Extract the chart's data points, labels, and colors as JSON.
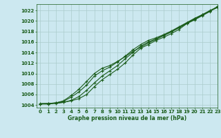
{
  "title": "Graphe pression niveau de la mer (hPa)",
  "background_color": "#cce8f0",
  "grid_color": "#aacccc",
  "line_color": "#1a5c1a",
  "xlim": [
    -0.5,
    23
  ],
  "ylim": [
    1003.5,
    1023.2
  ],
  "yticks": [
    1004,
    1006,
    1008,
    1010,
    1012,
    1014,
    1016,
    1018,
    1020,
    1022
  ],
  "xticks": [
    0,
    1,
    2,
    3,
    4,
    5,
    6,
    7,
    8,
    9,
    10,
    11,
    12,
    13,
    14,
    15,
    16,
    17,
    18,
    19,
    20,
    21,
    22,
    23
  ],
  "series": [
    [
      1004.2,
      1004.3,
      1004.4,
      1004.5,
      1004.8,
      1005.2,
      1006.0,
      1007.5,
      1008.8,
      1009.8,
      1010.8,
      1012.0,
      1013.5,
      1014.8,
      1015.5,
      1016.3,
      1016.9,
      1017.6,
      1018.4,
      1019.5,
      1020.2,
      1021.0,
      1021.8,
      1022.8
    ],
    [
      1004.2,
      1004.2,
      1004.3,
      1004.5,
      1004.9,
      1005.6,
      1006.8,
      1008.2,
      1009.5,
      1010.5,
      1011.5,
      1012.8,
      1014.0,
      1015.2,
      1016.0,
      1016.6,
      1017.3,
      1018.0,
      1018.8,
      1019.6,
      1020.4,
      1021.2,
      1021.9,
      1022.6
    ],
    [
      1004.3,
      1004.3,
      1004.4,
      1004.7,
      1005.5,
      1006.5,
      1007.8,
      1009.5,
      1010.5,
      1011.2,
      1012.2,
      1013.3,
      1014.5,
      1015.5,
      1016.3,
      1016.8,
      1017.4,
      1018.1,
      1018.9,
      1019.7,
      1020.5,
      1021.2,
      1022.0,
      1022.7
    ],
    [
      1004.2,
      1004.2,
      1004.4,
      1004.8,
      1005.8,
      1007.0,
      1008.5,
      1010.0,
      1011.0,
      1011.5,
      1012.3,
      1013.2,
      1014.2,
      1015.0,
      1015.8,
      1016.5,
      1017.2,
      1017.9,
      1018.7,
      1019.5,
      1020.3,
      1021.1,
      1021.9,
      1022.6
    ]
  ]
}
